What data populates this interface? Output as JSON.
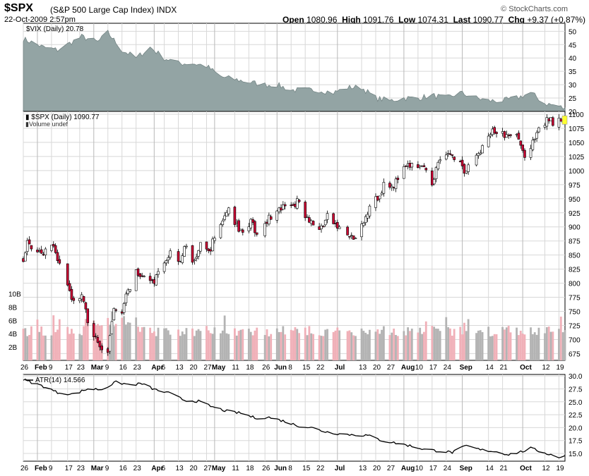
{
  "header": {
    "symbol": "$SPX",
    "name": "(S&P 500 Large Cap Index)",
    "exchange": "INDX",
    "datetime": "22-Oct-2009 2:57pm",
    "brand": "© StockCharts.com",
    "open_label": "Open",
    "open": "1080.96",
    "high_label": "High",
    "high": "1091.76",
    "low_label": "Low",
    "low": "1074.31",
    "last_label": "Last",
    "last": "1090.77",
    "chg_label": "Chg",
    "chg": "+9.37 (+0.87%)",
    "chg_icon": "triangle-up-icon"
  },
  "colors": {
    "up_candle": "#ffffff",
    "down_candle": "#cc0033",
    "vix_fill": "#93a4a4",
    "vol_up": "#b3b3b3",
    "vol_down": "#f0b0b8",
    "grid": "#d8d8d8",
    "highlight": "#ffff33"
  },
  "chart_data": [
    {
      "type": "area",
      "label": "$VIX (Daily) 20.78",
      "y_ticks": [
        "20",
        "25",
        "30",
        "35",
        "40",
        "45",
        "50"
      ],
      "ylim": [
        20,
        53
      ],
      "points": [
        [
          "2009-01-26",
          47.2
        ],
        [
          "2009-02-05",
          44
        ],
        [
          "2009-02-12",
          43
        ],
        [
          "2009-02-24",
          48
        ],
        [
          "2009-03-04",
          46
        ],
        [
          "2009-03-09",
          49.5
        ],
        [
          "2009-03-16",
          43
        ],
        [
          "2009-03-23",
          40
        ],
        [
          "2009-03-30",
          44
        ],
        [
          "2009-04-06",
          40
        ],
        [
          "2009-04-13",
          38
        ],
        [
          "2009-04-20",
          38
        ],
        [
          "2009-04-27",
          37
        ],
        [
          "2009-05-04",
          33
        ],
        [
          "2009-05-11",
          32
        ],
        [
          "2009-05-18",
          31
        ],
        [
          "2009-05-26",
          30
        ],
        [
          "2009-06-01",
          30
        ],
        [
          "2009-06-08",
          28
        ],
        [
          "2009-06-15",
          28
        ],
        [
          "2009-06-22",
          28
        ],
        [
          "2009-06-29",
          27
        ],
        [
          "2009-07-06",
          29
        ],
        [
          "2009-07-13",
          29
        ],
        [
          "2009-07-20",
          25
        ],
        [
          "2009-07-27",
          24
        ],
        [
          "2009-08-03",
          25
        ],
        [
          "2009-08-10",
          25
        ],
        [
          "2009-08-17",
          26
        ],
        [
          "2009-08-24",
          25
        ],
        [
          "2009-08-31",
          27
        ],
        [
          "2009-09-08",
          25
        ],
        [
          "2009-09-14",
          24
        ],
        [
          "2009-09-21",
          24
        ],
        [
          "2009-09-28",
          25
        ],
        [
          "2009-10-05",
          27
        ],
        [
          "2009-10-12",
          23
        ],
        [
          "2009-10-19",
          22
        ],
        [
          "2009-10-22",
          20.78
        ]
      ]
    },
    {
      "type": "candlestick",
      "label": "$SPX (Daily) 1090.77",
      "volume_label": "Volume undef",
      "y_ticks": [
        "675",
        "700",
        "725",
        "750",
        "775",
        "800",
        "825",
        "850",
        "875",
        "900",
        "925",
        "950",
        "975",
        "1000",
        "1025",
        "1050",
        "1075",
        "1100"
      ],
      "ylim": [
        663,
        1105
      ],
      "volume_ticks": [
        "2B",
        "4B",
        "6B",
        "8B",
        "10B"
      ],
      "volume_lim": [
        0,
        12
      ],
      "x_tick_labels": [
        "26",
        "Feb",
        "9",
        "17",
        "23",
        "Mar",
        "9",
        "16",
        "23",
        "Apr",
        "6",
        "13",
        "20",
        "27",
        "May",
        "11",
        "18",
        "26",
        "Jun",
        "8",
        "15",
        "22",
        "Jul",
        "13",
        "20",
        "27",
        "Aug",
        "10",
        "17",
        "24",
        "Sep",
        "14",
        "21",
        "Oct",
        "12",
        "19"
      ],
      "close_path": [
        [
          "2009-01-26",
          845
        ],
        [
          "2009-01-28",
          870
        ],
        [
          "2009-02-05",
          855
        ],
        [
          "2009-02-09",
          870
        ],
        [
          "2009-02-13",
          830
        ],
        [
          "2009-02-17",
          790
        ],
        [
          "2009-02-20",
          770
        ],
        [
          "2009-02-24",
          775
        ],
        [
          "2009-02-27",
          735
        ],
        [
          "2009-03-05",
          685
        ],
        [
          "2009-03-09",
          677
        ],
        [
          "2009-03-12",
          750
        ],
        [
          "2009-03-16",
          753
        ],
        [
          "2009-03-19",
          785
        ],
        [
          "2009-03-23",
          822
        ],
        [
          "2009-03-27",
          815
        ],
        [
          "2009-03-31",
          798
        ],
        [
          "2009-04-06",
          835
        ],
        [
          "2009-04-09",
          856
        ],
        [
          "2009-04-14",
          841
        ],
        [
          "2009-04-17",
          870
        ],
        [
          "2009-04-20",
          832
        ],
        [
          "2009-04-24",
          866
        ],
        [
          "2009-04-28",
          855
        ],
        [
          "2009-05-04",
          907
        ],
        [
          "2009-05-08",
          929
        ],
        [
          "2009-05-11",
          909
        ],
        [
          "2009-05-14",
          893
        ],
        [
          "2009-05-19",
          908
        ],
        [
          "2009-05-22",
          887
        ],
        [
          "2009-05-26",
          910
        ],
        [
          "2009-05-29",
          919
        ],
        [
          "2009-06-03",
          931
        ],
        [
          "2009-06-08",
          939
        ],
        [
          "2009-06-12",
          946
        ],
        [
          "2009-06-15",
          923
        ],
        [
          "2009-06-22",
          893
        ],
        [
          "2009-06-26",
          918
        ],
        [
          "2009-07-02",
          896
        ],
        [
          "2009-07-08",
          880
        ],
        [
          "2009-07-10",
          879
        ],
        [
          "2009-07-14",
          905
        ],
        [
          "2009-07-17",
          941
        ],
        [
          "2009-07-22",
          954
        ],
        [
          "2009-07-24",
          979
        ],
        [
          "2009-07-29",
          975
        ],
        [
          "2009-08-03",
          1002
        ],
        [
          "2009-08-07",
          1010
        ],
        [
          "2009-08-12",
          1005
        ],
        [
          "2009-08-17",
          979
        ],
        [
          "2009-08-21",
          1026
        ],
        [
          "2009-08-26",
          1028
        ],
        [
          "2009-08-31",
          1020
        ],
        [
          "2009-09-02",
          995
        ],
        [
          "2009-09-08",
          1025
        ],
        [
          "2009-09-11",
          1042
        ],
        [
          "2009-09-16",
          1068
        ],
        [
          "2009-09-21",
          1064
        ],
        [
          "2009-09-23",
          1060
        ],
        [
          "2009-09-28",
          1062
        ],
        [
          "2009-10-02",
          1025
        ],
        [
          "2009-10-05",
          1040
        ],
        [
          "2009-10-09",
          1071
        ],
        [
          "2009-10-14",
          1092
        ],
        [
          "2009-10-16",
          1087
        ],
        [
          "2009-10-19",
          1097
        ],
        [
          "2009-10-21",
          1081
        ],
        [
          "2009-10-22",
          1090.77
        ]
      ]
    },
    {
      "type": "line",
      "label": "ATR(14) 14.566",
      "y_ticks": [
        "15.0",
        "17.5",
        "20.0",
        "22.5",
        "25.0",
        "27.5",
        "30.0"
      ],
      "ylim": [
        13.5,
        30.3
      ],
      "points": [
        [
          "2009-01-26",
          29.3
        ],
        [
          "2009-02-05",
          28
        ],
        [
          "2009-02-12",
          26.8
        ],
        [
          "2009-02-20",
          26.5
        ],
        [
          "2009-02-27",
          27.5
        ],
        [
          "2009-03-06",
          27.4
        ],
        [
          "2009-03-13",
          28.8
        ],
        [
          "2009-03-20",
          28.3
        ],
        [
          "2009-03-26",
          28.5
        ],
        [
          "2009-04-01",
          27.4
        ],
        [
          "2009-04-09",
          26.6
        ],
        [
          "2009-04-16",
          25.3
        ],
        [
          "2009-04-23",
          25.1
        ],
        [
          "2009-04-30",
          24
        ],
        [
          "2009-05-07",
          23.2
        ],
        [
          "2009-05-14",
          22.8
        ],
        [
          "2009-05-21",
          21.9
        ],
        [
          "2009-05-28",
          22
        ],
        [
          "2009-06-04",
          21.3
        ],
        [
          "2009-06-11",
          20.4
        ],
        [
          "2009-06-18",
          20
        ],
        [
          "2009-06-25",
          19.2
        ],
        [
          "2009-07-02",
          18.8
        ],
        [
          "2009-07-09",
          18.6
        ],
        [
          "2009-07-16",
          18.5
        ],
        [
          "2009-07-23",
          17.5
        ],
        [
          "2009-07-30",
          17
        ],
        [
          "2009-08-06",
          16.5
        ],
        [
          "2009-08-13",
          15.8
        ],
        [
          "2009-08-20",
          15.5
        ],
        [
          "2009-08-27",
          15.2
        ],
        [
          "2009-09-03",
          16.5
        ],
        [
          "2009-09-10",
          15.7
        ],
        [
          "2009-09-17",
          15.4
        ],
        [
          "2009-09-24",
          14.8
        ],
        [
          "2009-10-01",
          15.4
        ],
        [
          "2009-10-05",
          16
        ],
        [
          "2009-10-12",
          15.1
        ],
        [
          "2009-10-19",
          14.3
        ],
        [
          "2009-10-22",
          14.566
        ]
      ]
    }
  ]
}
